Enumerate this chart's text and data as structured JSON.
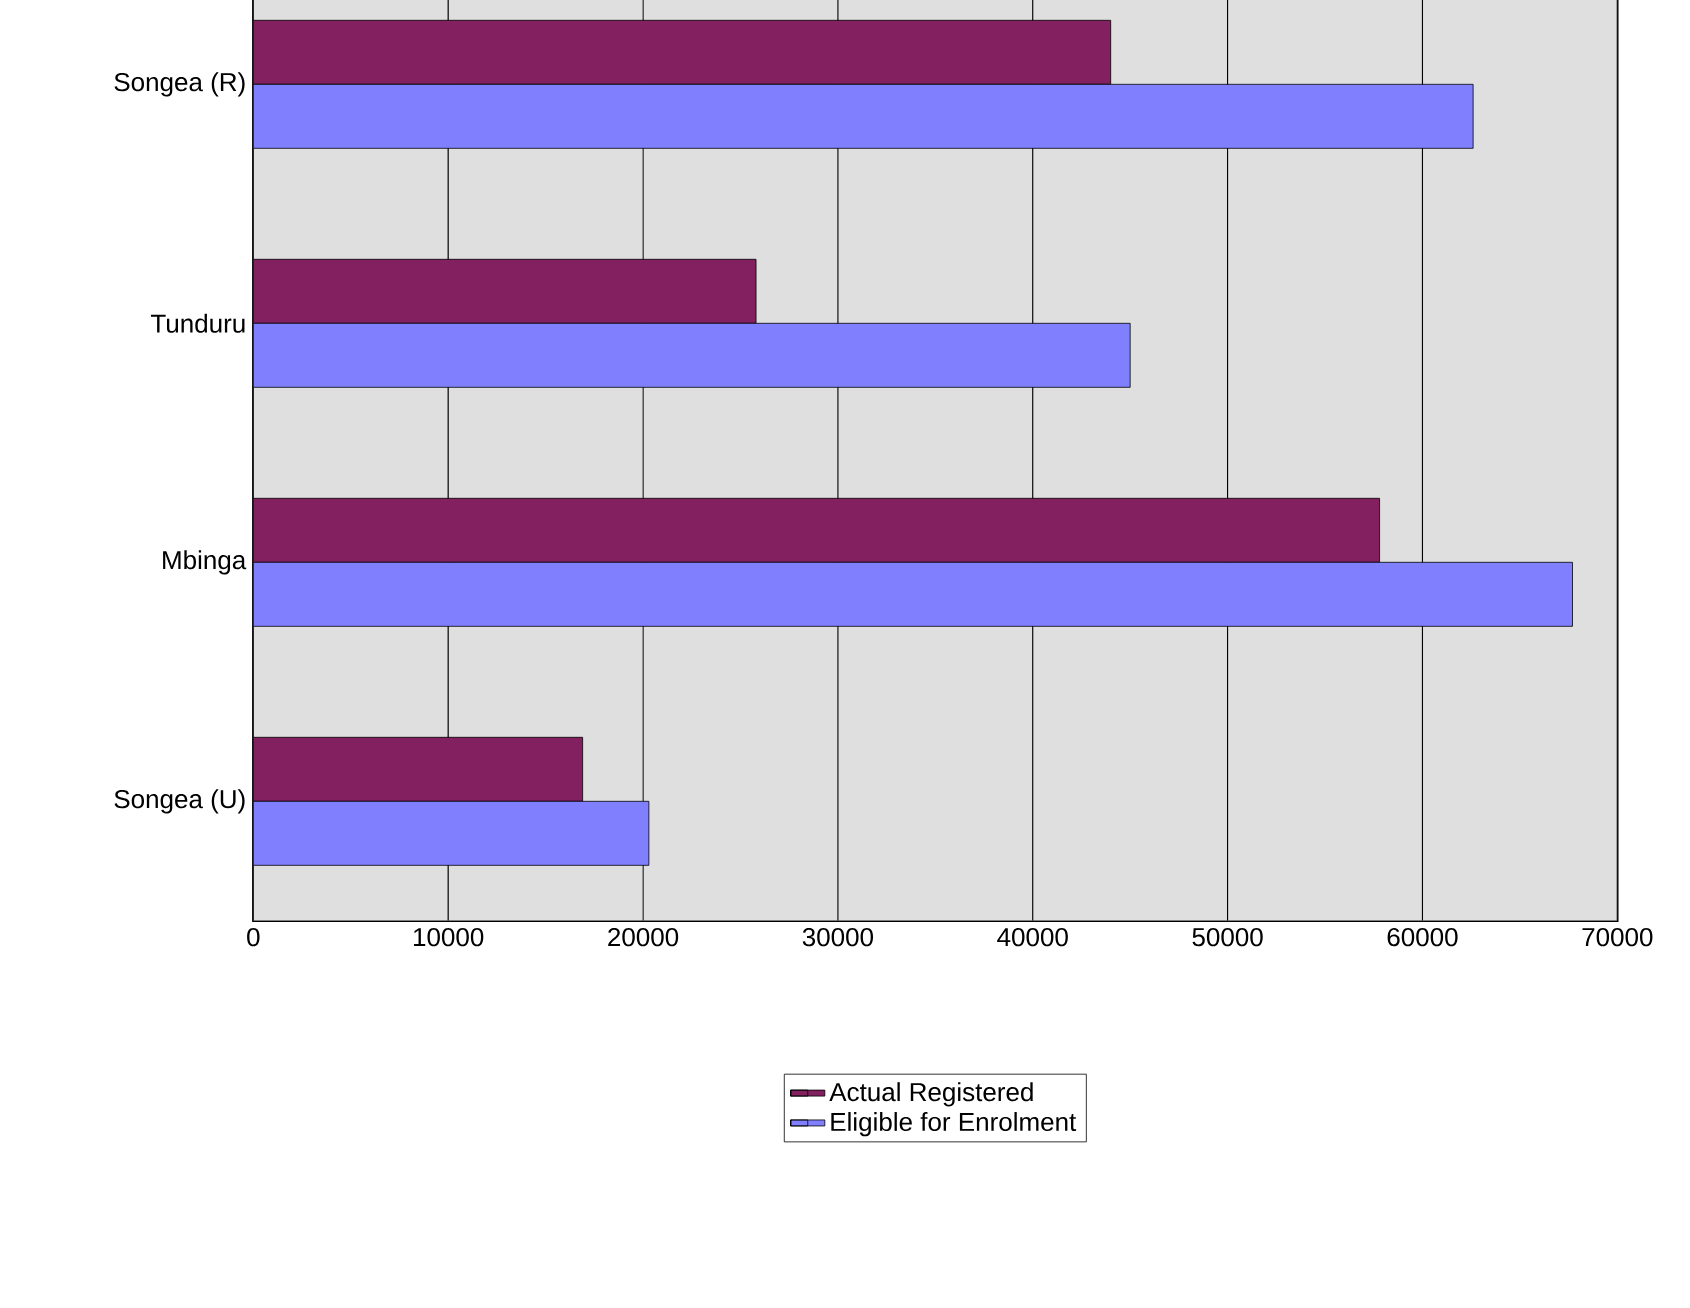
{
  "chart_data": {
    "type": "bar",
    "orientation": "horizontal",
    "categories": [
      "Songea (R)",
      "Tunduru",
      "Mbinga",
      "Songea (U)"
    ],
    "series": [
      {
        "name": "Actual Registered",
        "color": "#822060",
        "values": [
          44000,
          25800,
          57800,
          16900
        ]
      },
      {
        "name": "Eligible for Enrolment",
        "color": "#8080ff",
        "values": [
          62600,
          45000,
          67700,
          20300
        ]
      }
    ],
    "xlim": [
      0,
      70000
    ],
    "xticks": [
      0,
      10000,
      20000,
      30000,
      40000,
      50000,
      60000,
      70000
    ],
    "grid": "x",
    "legend": "bottom"
  }
}
